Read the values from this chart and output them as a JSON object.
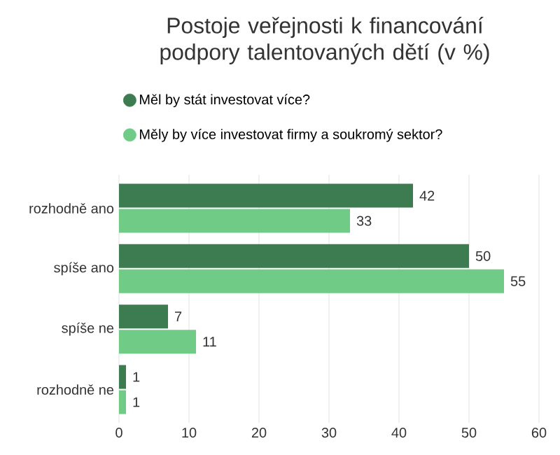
{
  "chart_data": {
    "type": "bar",
    "orientation": "horizontal",
    "title": "Postoje veřejnosti k financování podpory talentovaných dětí (v %)",
    "categories": [
      "rozhodně ano",
      "spíše ano",
      "spíše ne",
      "rozhodně ne"
    ],
    "series": [
      {
        "name": "Měl by stát investovat více?",
        "color": "#3d7b51",
        "values": [
          42,
          50,
          7,
          1
        ]
      },
      {
        "name": "Měly by více investovat firmy a soukromý sektor?",
        "color": "#6fcb85",
        "values": [
          33,
          55,
          11,
          1
        ]
      }
    ],
    "xlim": [
      0,
      60
    ],
    "xticks": [
      0,
      10,
      20,
      30,
      40,
      50,
      60
    ],
    "grid": "x",
    "legend": "top",
    "data_labels": true
  }
}
